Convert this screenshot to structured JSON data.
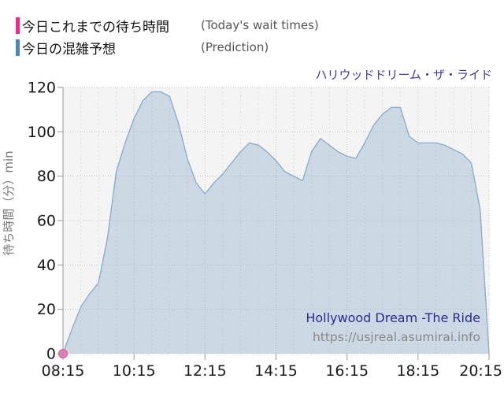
{
  "legend": {
    "items": [
      {
        "label_jp": "今日これまでの待ち時間",
        "label_en": "(Today's wait times)",
        "color": "#ee2a8e"
      },
      {
        "label_jp": "今日の混雑予想",
        "label_en": "(Prediction)",
        "color": "#4f86b5"
      }
    ]
  },
  "chart_title": "ハリウッドドリーム・ザ・ライド",
  "watermark": {
    "line1": "Hollywood Dream -The Ride",
    "line2": "https://usjreal.asumirai.info"
  },
  "colors": {
    "plot_background": "#f4f4f4",
    "grid_major": "#c9c9c9",
    "grid_minor": "#dfdfdf",
    "axis": "#999999",
    "area_fill": "rgba(125,160,195,0.33)",
    "area_stroke": "#8faec9",
    "today_point_fill": "#ee79b7",
    "today_point_stroke": "#d9559e",
    "title_color": "#3d3d99",
    "watermark_color": "#2b2b8a",
    "url_color": "#888888"
  },
  "chart_data": {
    "type": "area",
    "title": "ハリウッドドリーム・ザ・ライド",
    "xlabel": "",
    "ylabel": "待ち時間（分）min",
    "ylim": [
      0,
      120
    ],
    "yticks": [
      0,
      20,
      40,
      60,
      80,
      100,
      120
    ],
    "xtick_labels": [
      "08:15",
      "10:15",
      "12:15",
      "14:15",
      "16:15",
      "18:15",
      "20:15"
    ],
    "minor_x_grid_minutes": 30,
    "grid": true,
    "legend_position": "top-left",
    "x": [
      "08:15",
      "08:30",
      "08:45",
      "09:00",
      "09:15",
      "09:30",
      "09:45",
      "10:00",
      "10:15",
      "10:30",
      "10:45",
      "11:00",
      "11:15",
      "11:30",
      "11:45",
      "12:00",
      "12:15",
      "12:30",
      "12:45",
      "13:00",
      "13:15",
      "13:30",
      "13:45",
      "14:00",
      "14:15",
      "14:30",
      "14:45",
      "15:00",
      "15:15",
      "15:30",
      "15:45",
      "16:00",
      "16:15",
      "16:30",
      "16:45",
      "17:00",
      "17:15",
      "17:30",
      "17:45",
      "18:00",
      "18:15",
      "18:30",
      "18:45",
      "19:00",
      "19:15",
      "19:30",
      "19:45",
      "20:00",
      "20:15"
    ],
    "series": [
      {
        "name": "今日これまでの待ち時間",
        "type": "scatter",
        "points": [
          {
            "x": "08:15",
            "y": 0
          }
        ]
      },
      {
        "name": "今日の混雑予想",
        "type": "area",
        "values": [
          0,
          11,
          21,
          27,
          32,
          52,
          82,
          95,
          106,
          114,
          118,
          118,
          116,
          104,
          88,
          77,
          72,
          77,
          81,
          86,
          91,
          95,
          94,
          91,
          87,
          82,
          80,
          78,
          91,
          97,
          94,
          91,
          89,
          88,
          95,
          103,
          108,
          111,
          111,
          98,
          95,
          95,
          95,
          94,
          92,
          90,
          86,
          65,
          0
        ]
      }
    ]
  }
}
